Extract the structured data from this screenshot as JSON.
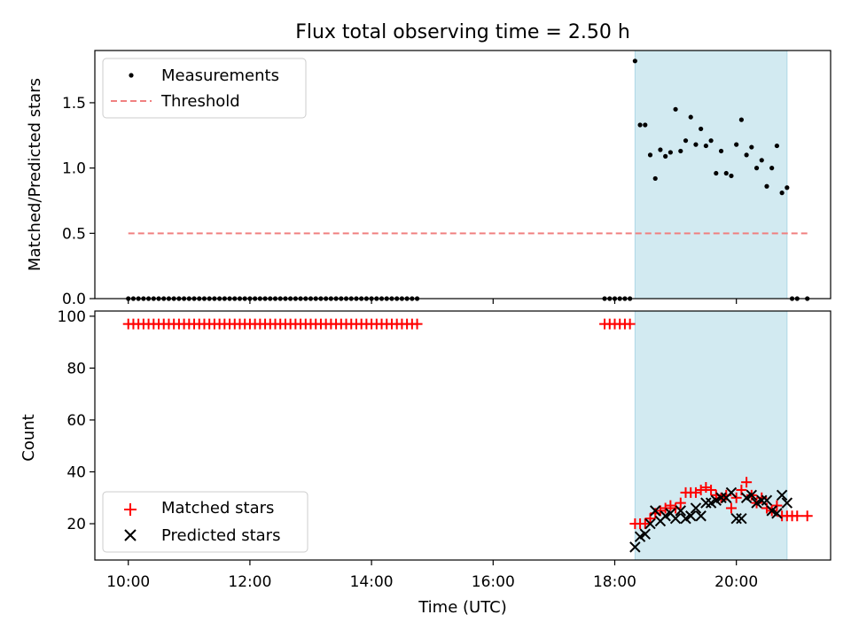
{
  "chart_data": [
    {
      "type": "scatter",
      "title": "Flux total observing time = 2.50 h",
      "ylabel": "Matched/Predicted stars",
      "xlabel": "",
      "x_unit": "hours UTC",
      "xlim": [
        "09:27",
        "21:33"
      ],
      "ylim": [
        0,
        1.9
      ],
      "yticks": [
        0.0,
        0.5,
        1.0,
        1.5
      ],
      "ytick_labels": [
        "0.0",
        "0.5",
        "1.0",
        "1.5"
      ],
      "xticks": [
        "10:00",
        "12:00",
        "14:00",
        "16:00",
        "18:00",
        "20:00"
      ],
      "xtick_labels_visible": false,
      "grid": false,
      "legend": {
        "position": "upper left",
        "entries": [
          "Measurements",
          "Threshold"
        ]
      },
      "shaded_interval": {
        "from": "18:20",
        "to": "20:50",
        "color": "#add8e6"
      },
      "threshold": {
        "name": "Threshold",
        "value": 0.5,
        "x": [
          "10:00",
          "21:10"
        ],
        "color": "#f08080",
        "style": "dashed"
      },
      "series": [
        {
          "name": "Measurements",
          "color": "#000000",
          "marker": "dot",
          "x": [
            "10:00",
            "10:05",
            "10:10",
            "10:15",
            "10:20",
            "10:25",
            "10:30",
            "10:35",
            "10:40",
            "10:45",
            "10:50",
            "10:55",
            "11:00",
            "11:05",
            "11:10",
            "11:15",
            "11:20",
            "11:25",
            "11:30",
            "11:35",
            "11:40",
            "11:45",
            "11:50",
            "11:55",
            "12:00",
            "12:05",
            "12:10",
            "12:15",
            "12:20",
            "12:25",
            "12:30",
            "12:35",
            "12:40",
            "12:45",
            "12:50",
            "12:55",
            "13:00",
            "13:05",
            "13:10",
            "13:15",
            "13:20",
            "13:25",
            "13:30",
            "13:35",
            "13:40",
            "13:45",
            "13:50",
            "13:55",
            "14:00",
            "14:05",
            "14:10",
            "14:15",
            "14:20",
            "14:25",
            "14:30",
            "14:35",
            "14:40",
            "14:45",
            "17:50",
            "17:55",
            "18:00",
            "18:05",
            "18:10",
            "18:15",
            "18:20",
            "18:25",
            "18:30",
            "18:35",
            "18:40",
            "18:45",
            "18:50",
            "18:55",
            "19:00",
            "19:05",
            "19:10",
            "19:15",
            "19:20",
            "19:25",
            "19:30",
            "19:35",
            "19:40",
            "19:45",
            "19:50",
            "19:55",
            "20:00",
            "20:05",
            "20:10",
            "20:15",
            "20:20",
            "20:25",
            "20:30",
            "20:35",
            "20:40",
            "20:45",
            "20:50",
            "20:55",
            "21:00",
            "21:10"
          ],
          "y": [
            0,
            0,
            0,
            0,
            0,
            0,
            0,
            0,
            0,
            0,
            0,
            0,
            0,
            0,
            0,
            0,
            0,
            0,
            0,
            0,
            0,
            0,
            0,
            0,
            0,
            0,
            0,
            0,
            0,
            0,
            0,
            0,
            0,
            0,
            0,
            0,
            0,
            0,
            0,
            0,
            0,
            0,
            0,
            0,
            0,
            0,
            0,
            0,
            0,
            0,
            0,
            0,
            0,
            0,
            0,
            0,
            0,
            0,
            0,
            0,
            0,
            0,
            0,
            0,
            1.82,
            1.33,
            1.33,
            1.1,
            0.92,
            1.14,
            1.09,
            1.12,
            1.45,
            1.13,
            1.21,
            1.39,
            1.18,
            1.3,
            1.17,
            1.21,
            0.96,
            1.13,
            0.96,
            0.94,
            1.18,
            1.37,
            1.1,
            1.16,
            1.0,
            1.06,
            0.86,
            1.0,
            1.17,
            0.81,
            0.85,
            0,
            0,
            0
          ]
        }
      ]
    },
    {
      "type": "scatter",
      "title": "",
      "xlabel": "Time (UTC)",
      "ylabel": "Count",
      "x_unit": "hours UTC",
      "xlim": [
        "09:27",
        "21:33"
      ],
      "ylim": [
        6,
        102
      ],
      "yticks": [
        20,
        40,
        60,
        80,
        100
      ],
      "ytick_labels": [
        "20",
        "40",
        "60",
        "80",
        "100"
      ],
      "xticks": [
        "10:00",
        "12:00",
        "14:00",
        "16:00",
        "18:00",
        "20:00"
      ],
      "xtick_labels": [
        "10:00",
        "12:00",
        "14:00",
        "16:00",
        "18:00",
        "20:00"
      ],
      "grid": false,
      "legend": {
        "position": "lower left",
        "entries": [
          "Matched stars",
          "Predicted stars"
        ]
      },
      "shaded_interval": {
        "from": "18:20",
        "to": "20:50",
        "color": "#add8e6"
      },
      "series": [
        {
          "name": "Matched stars",
          "color": "#ff0000",
          "marker": "plus",
          "x": [
            "10:00",
            "10:05",
            "10:10",
            "10:15",
            "10:20",
            "10:25",
            "10:30",
            "10:35",
            "10:40",
            "10:45",
            "10:50",
            "10:55",
            "11:00",
            "11:05",
            "11:10",
            "11:15",
            "11:20",
            "11:25",
            "11:30",
            "11:35",
            "11:40",
            "11:45",
            "11:50",
            "11:55",
            "12:00",
            "12:05",
            "12:10",
            "12:15",
            "12:20",
            "12:25",
            "12:30",
            "12:35",
            "12:40",
            "12:45",
            "12:50",
            "12:55",
            "13:00",
            "13:05",
            "13:10",
            "13:15",
            "13:20",
            "13:25",
            "13:30",
            "13:35",
            "13:40",
            "13:45",
            "13:50",
            "13:55",
            "14:00",
            "14:05",
            "14:10",
            "14:15",
            "14:20",
            "14:25",
            "14:30",
            "14:35",
            "14:40",
            "14:45",
            "17:50",
            "17:55",
            "18:00",
            "18:05",
            "18:10",
            "18:15",
            "18:20",
            "18:25",
            "18:30",
            "18:35",
            "18:40",
            "18:45",
            "18:50",
            "18:55",
            "19:00",
            "19:05",
            "19:10",
            "19:15",
            "19:20",
            "19:25",
            "19:30",
            "19:35",
            "19:40",
            "19:45",
            "19:50",
            "19:55",
            "20:00",
            "20:05",
            "20:10",
            "20:15",
            "20:20",
            "20:25",
            "20:30",
            "20:35",
            "20:40",
            "20:45",
            "20:50",
            "20:55",
            "21:00",
            "21:10"
          ],
          "y": [
            97,
            97,
            97,
            97,
            97,
            97,
            97,
            97,
            97,
            97,
            97,
            97,
            97,
            97,
            97,
            97,
            97,
            97,
            97,
            97,
            97,
            97,
            97,
            97,
            97,
            97,
            97,
            97,
            97,
            97,
            97,
            97,
            97,
            97,
            97,
            97,
            97,
            97,
            97,
            97,
            97,
            97,
            97,
            97,
            97,
            97,
            97,
            97,
            97,
            97,
            97,
            97,
            97,
            97,
            97,
            97,
            97,
            97,
            97,
            97,
            97,
            97,
            97,
            97,
            20,
            20,
            20,
            22,
            24,
            25,
            26,
            27,
            26,
            28,
            32,
            32,
            32,
            33,
            34,
            33,
            31,
            30,
            31,
            26,
            30,
            33,
            36,
            31,
            28,
            30,
            26,
            25,
            27,
            23,
            23,
            23,
            23,
            23
          ]
        },
        {
          "name": "Predicted stars",
          "color": "#000000",
          "marker": "x",
          "x": [
            "18:20",
            "18:25",
            "18:30",
            "18:35",
            "18:40",
            "18:45",
            "18:50",
            "18:55",
            "19:00",
            "19:05",
            "19:10",
            "19:15",
            "19:20",
            "19:25",
            "19:30",
            "19:35",
            "19:40",
            "19:45",
            "19:50",
            "19:55",
            "20:00",
            "20:05",
            "20:10",
            "20:15",
            "20:20",
            "20:25",
            "20:30",
            "20:35",
            "20:40",
            "20:45",
            "20:50"
          ],
          "y": [
            11,
            15,
            16,
            20,
            25,
            21,
            23,
            24,
            22,
            25,
            22,
            23,
            26,
            23,
            28,
            28,
            29,
            30,
            30,
            32,
            22,
            22,
            30,
            31,
            28,
            29,
            29,
            25,
            24,
            31,
            28
          ]
        }
      ]
    }
  ]
}
